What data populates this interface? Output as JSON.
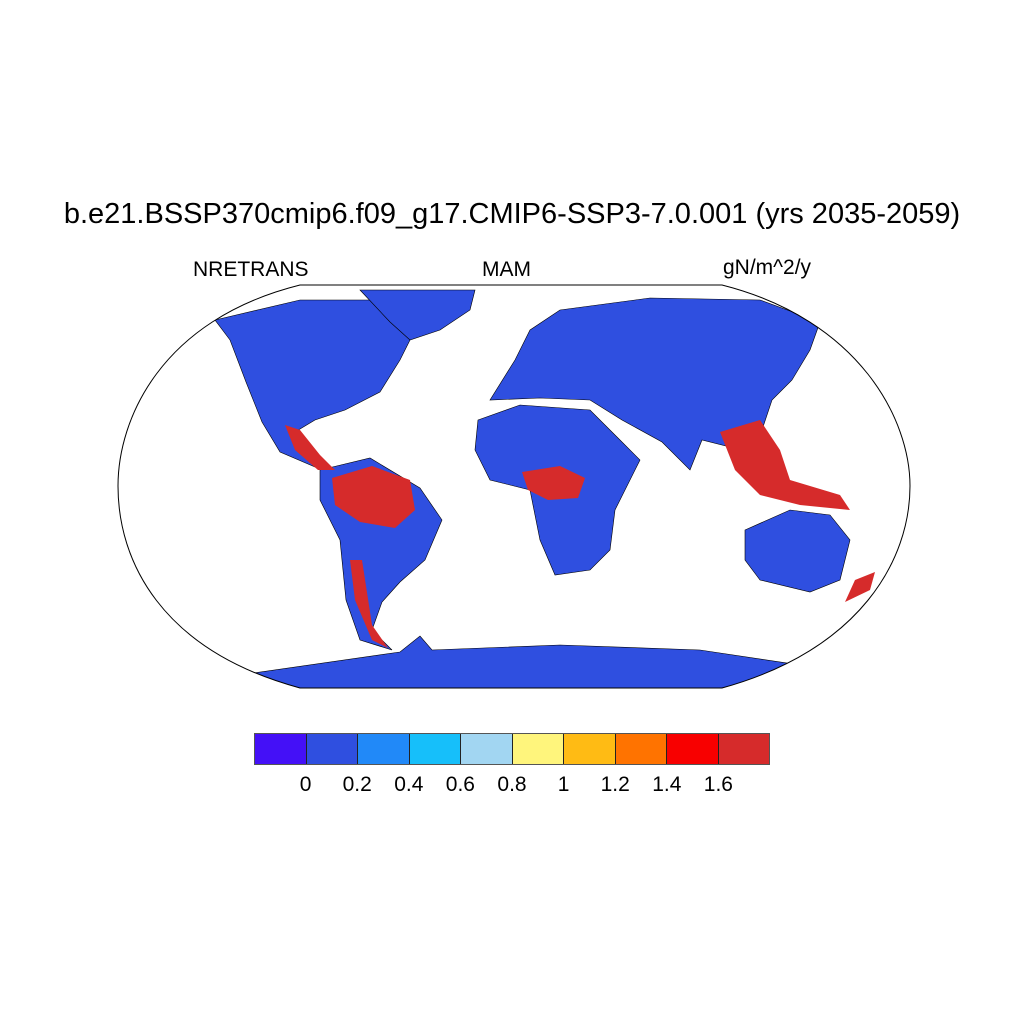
{
  "title": "b.e21.BSSP370cmip6.f09_g17.CMIP6-SSP3-7.0.001 (yrs 2035-2059)",
  "left_label": "NRETRANS",
  "center_label": "MAM",
  "right_label": "gN/m^2/y",
  "map": {
    "projection": "Robinson",
    "ocean_color": "#ffffff",
    "dominant_land_color": "#2f4fe0",
    "high_value_color": "#d62b2b"
  },
  "colorbar": {
    "colors": [
      "#4410f7",
      "#2f4fe0",
      "#2189f8",
      "#16bffa",
      "#a2d6f2",
      "#fff57c",
      "#ffbb14",
      "#ff7300",
      "#f80000",
      "#d62b2b"
    ],
    "labels": [
      "0",
      "0.2",
      "0.4",
      "0.6",
      "0.8",
      "1",
      "1.2",
      "1.4",
      "1.6"
    ]
  }
}
